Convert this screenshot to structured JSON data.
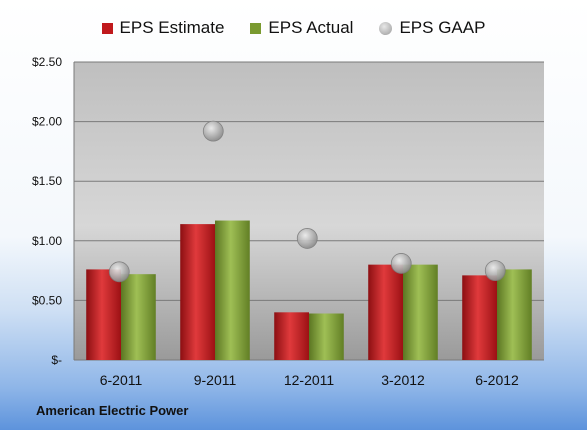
{
  "chart_data": {
    "type": "bar",
    "categories": [
      "6-2011",
      "9-2011",
      "12-2011",
      "3-2012",
      "6-2012"
    ],
    "series": [
      {
        "name": "EPS Estimate",
        "kind": "bar",
        "color": "#c0191c",
        "values": [
          0.76,
          1.14,
          0.4,
          0.8,
          0.71
        ]
      },
      {
        "name": "EPS Actual",
        "kind": "bar",
        "color": "#7a9a30",
        "values": [
          0.72,
          1.17,
          0.39,
          0.8,
          0.76
        ]
      },
      {
        "name": "EPS GAAP",
        "kind": "marker",
        "color": "#a8a8a8",
        "values": [
          0.74,
          1.92,
          1.02,
          0.81,
          0.75
        ]
      }
    ],
    "y_ticks": [
      "$-",
      "$0.50",
      "$1.00",
      "$1.50",
      "$2.00",
      "$2.50"
    ],
    "ylim": [
      0,
      2.5
    ],
    "grid": true,
    "legend_position": "top-center",
    "footer_label": "American Electric Power"
  }
}
